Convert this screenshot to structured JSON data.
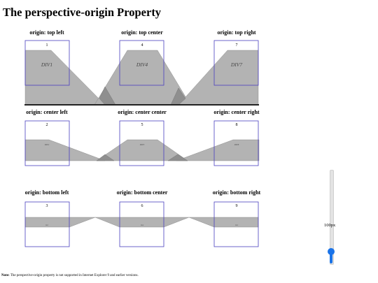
{
  "page": {
    "title": "The perspective-origin Property"
  },
  "demos": [
    {
      "caption": "origin: top left",
      "number": "1",
      "label": "DIV1"
    },
    {
      "caption": "origin: top center",
      "number": "4",
      "label": "DIV4"
    },
    {
      "caption": "origin: top right",
      "number": "7",
      "label": "DIV7"
    },
    {
      "caption": "origin: center left",
      "number": "2",
      "label": "DIV2"
    },
    {
      "caption": "origin: center center",
      "number": "5",
      "label": "DIV5"
    },
    {
      "caption": "origin: center right",
      "number": "8",
      "label": "DIV8"
    },
    {
      "caption": "origin: bottom left",
      "number": "3",
      "label": "DIV3"
    },
    {
      "caption": "origin: bottom center",
      "number": "6",
      "label": "DIV6"
    },
    {
      "caption": "origin: bottom right",
      "number": "9",
      "label": "DIV9"
    }
  ],
  "perspective_slider": {
    "value_text": "100px",
    "value": 100,
    "fraction": 0.1,
    "accent": "#1a73e8",
    "orientation": "vertical"
  },
  "note": {
    "bold": "Note:",
    "text": " The perspective-origin property is not supported in Internet Explorer 9 and earlier versions."
  },
  "colors": {
    "box_border": "#4a3fbf",
    "shape_fill": "#b3b3b3"
  }
}
